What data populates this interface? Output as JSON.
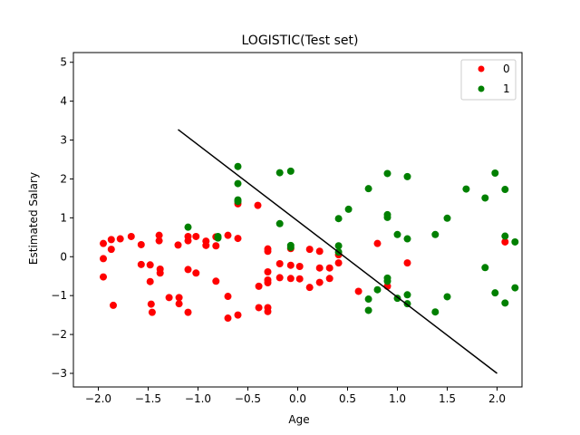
{
  "chart_data": {
    "type": "scatter",
    "title": "LOGISTIC(Test set)",
    "xlabel": "Age",
    "ylabel": "Estimated Salary",
    "xlim": [
      -2.25,
      2.25
    ],
    "ylim": [
      -3.35,
      5.25
    ],
    "xticks": [
      -2.0,
      -1.5,
      -1.0,
      -0.5,
      0.0,
      0.5,
      1.0,
      1.5,
      2.0
    ],
    "xtick_labels": [
      "−2.0",
      "−1.5",
      "−1.0",
      "−0.5",
      "0.0",
      "0.5",
      "1.0",
      "1.5",
      "2.0"
    ],
    "yticks": [
      -3,
      -2,
      -1,
      0,
      1,
      2,
      3,
      4,
      5
    ],
    "ytick_labels": [
      "−3",
      "−2",
      "−1",
      "0",
      "1",
      "2",
      "3",
      "4",
      "5"
    ],
    "grid": false,
    "legend_position": "top-right",
    "series": [
      {
        "name": "0",
        "color": "#ff0000",
        "points": [
          [
            -1.95,
            0.34
          ],
          [
            -1.95,
            -0.05
          ],
          [
            -1.95,
            -0.52
          ],
          [
            -1.87,
            0.44
          ],
          [
            -1.87,
            0.19
          ],
          [
            -1.85,
            -1.25
          ],
          [
            -1.78,
            0.46
          ],
          [
            -1.67,
            0.52
          ],
          [
            -1.57,
            0.31
          ],
          [
            -1.57,
            -0.2
          ],
          [
            -1.48,
            -0.21
          ],
          [
            -1.48,
            -0.64
          ],
          [
            -1.47,
            -1.22
          ],
          [
            -1.46,
            -1.43
          ],
          [
            -1.39,
            0.55
          ],
          [
            -1.39,
            0.41
          ],
          [
            -1.38,
            -0.32
          ],
          [
            -1.38,
            -0.42
          ],
          [
            -1.29,
            -1.05
          ],
          [
            -1.2,
            0.3
          ],
          [
            -1.19,
            -1.05
          ],
          [
            -1.19,
            -1.21
          ],
          [
            -1.1,
            0.52
          ],
          [
            -1.1,
            0.41
          ],
          [
            -1.1,
            -0.33
          ],
          [
            -1.1,
            -1.43
          ],
          [
            -1.02,
            0.52
          ],
          [
            -1.02,
            -0.42
          ],
          [
            -0.92,
            0.4
          ],
          [
            -0.92,
            0.29
          ],
          [
            -0.82,
            0.51
          ],
          [
            -0.82,
            0.28
          ],
          [
            -0.82,
            -0.63
          ],
          [
            -0.7,
            0.55
          ],
          [
            -0.7,
            -1.02
          ],
          [
            -0.7,
            -1.58
          ],
          [
            -0.6,
            1.36
          ],
          [
            -0.6,
            0.47
          ],
          [
            -0.6,
            -1.5
          ],
          [
            -0.4,
            1.32
          ],
          [
            -0.39,
            -0.76
          ],
          [
            -0.39,
            -1.31
          ],
          [
            -0.3,
            0.2
          ],
          [
            -0.3,
            0.14
          ],
          [
            -0.3,
            -0.39
          ],
          [
            -0.3,
            -0.6
          ],
          [
            -0.3,
            -0.67
          ],
          [
            -0.3,
            -1.31
          ],
          [
            -0.3,
            -1.41
          ],
          [
            -0.18,
            -0.18
          ],
          [
            -0.18,
            -0.54
          ],
          [
            -0.07,
            0.21
          ],
          [
            -0.07,
            -0.22
          ],
          [
            -0.07,
            -0.56
          ],
          [
            0.02,
            -0.25
          ],
          [
            0.02,
            -0.57
          ],
          [
            0.12,
            0.19
          ],
          [
            0.12,
            -0.79
          ],
          [
            0.22,
            0.14
          ],
          [
            0.22,
            -0.29
          ],
          [
            0.22,
            -0.66
          ],
          [
            0.32,
            -0.29
          ],
          [
            0.32,
            -0.56
          ],
          [
            0.41,
            0.05
          ],
          [
            0.41,
            -0.16
          ],
          [
            0.61,
            -0.89
          ],
          [
            0.8,
            0.34
          ],
          [
            0.9,
            -0.76
          ],
          [
            1.1,
            -0.16
          ],
          [
            2.08,
            0.38
          ]
        ]
      },
      {
        "name": "1",
        "color": "#008000",
        "points": [
          [
            -1.1,
            0.76
          ],
          [
            -0.8,
            0.52
          ],
          [
            -0.8,
            0.48
          ],
          [
            -0.6,
            2.32
          ],
          [
            -0.6,
            1.88
          ],
          [
            -0.6,
            1.46
          ],
          [
            -0.6,
            1.42
          ],
          [
            -0.18,
            2.16
          ],
          [
            -0.18,
            0.85
          ],
          [
            -0.07,
            2.2
          ],
          [
            -0.07,
            0.29
          ],
          [
            -0.07,
            0.24
          ],
          [
            0.41,
            0.98
          ],
          [
            0.41,
            0.28
          ],
          [
            0.41,
            0.12
          ],
          [
            0.51,
            1.22
          ],
          [
            0.71,
            1.75
          ],
          [
            0.71,
            -1.09
          ],
          [
            0.71,
            -1.38
          ],
          [
            0.8,
            -0.85
          ],
          [
            0.9,
            2.14
          ],
          [
            0.9,
            1.08
          ],
          [
            0.9,
            1.01
          ],
          [
            0.9,
            -0.55
          ],
          [
            0.9,
            -0.63
          ],
          [
            1.0,
            0.57
          ],
          [
            1.0,
            -1.07
          ],
          [
            1.1,
            2.06
          ],
          [
            1.1,
            0.46
          ],
          [
            1.1,
            -0.98
          ],
          [
            1.1,
            -1.21
          ],
          [
            1.38,
            0.57
          ],
          [
            1.38,
            -1.42
          ],
          [
            1.5,
            0.99
          ],
          [
            1.5,
            -1.03
          ],
          [
            1.69,
            1.74
          ],
          [
            1.88,
            1.51
          ],
          [
            1.88,
            -0.28
          ],
          [
            1.98,
            2.15
          ],
          [
            1.98,
            -0.93
          ],
          [
            2.08,
            1.73
          ],
          [
            2.08,
            0.53
          ],
          [
            2.08,
            -1.19
          ],
          [
            2.18,
            0.38
          ],
          [
            2.18,
            -0.8
          ]
        ]
      }
    ],
    "decision_line": {
      "x": [
        -1.2,
        2.0
      ],
      "y": [
        3.27,
        -3.0
      ],
      "color": "#000000"
    }
  }
}
